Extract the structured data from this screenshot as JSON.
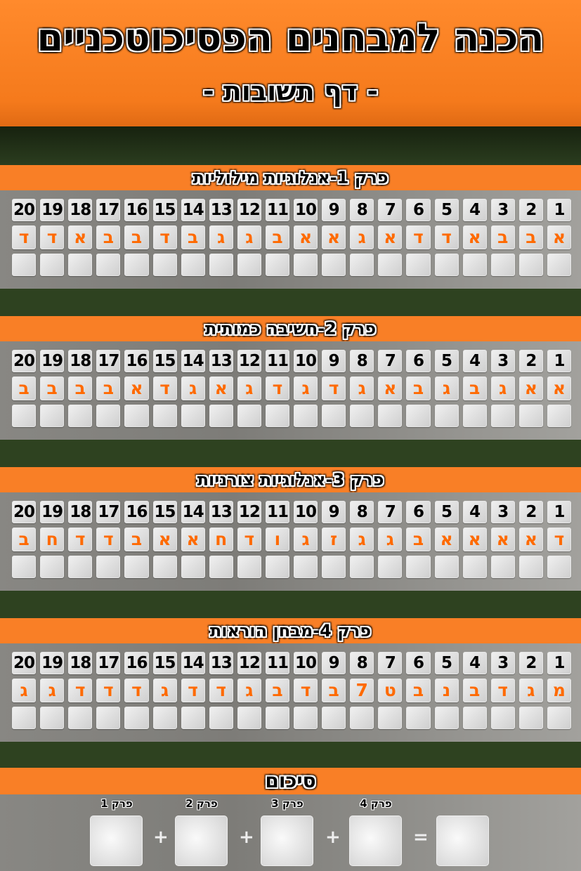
{
  "header": {
    "title": "הכנה למבחנים הפסיכוטכניים",
    "subtitle": "- דף תשובות -"
  },
  "colors": {
    "accent": "#f97f26",
    "answer": "#ff6a00",
    "background": "#2e4220",
    "panel": "#888783"
  },
  "sections": [
    {
      "title": "פרק 1-אנלוגיות מילוליות",
      "numbers": [
        "1",
        "2",
        "3",
        "4",
        "5",
        "6",
        "7",
        "8",
        "9",
        "10",
        "11",
        "12",
        "13",
        "14",
        "15",
        "16",
        "17",
        "18",
        "19",
        "20"
      ],
      "answers": [
        "א",
        "ב",
        "ב",
        "א",
        "ד",
        "ד",
        "א",
        "ג",
        "א",
        "א",
        "ב",
        "ג",
        "ג",
        "ב",
        "ד",
        "ב",
        "ב",
        "א",
        "ד",
        "ד"
      ]
    },
    {
      "title": "פרק 2-חשיבה כמותית",
      "numbers": [
        "1",
        "2",
        "3",
        "4",
        "5",
        "6",
        "7",
        "8",
        "9",
        "10",
        "11",
        "12",
        "13",
        "14",
        "15",
        "16",
        "17",
        "18",
        "19",
        "20"
      ],
      "answers": [
        "א",
        "א",
        "ג",
        "ב",
        "ג",
        "ב",
        "א",
        "ג",
        "ד",
        "ג",
        "ד",
        "ג",
        "א",
        "ג",
        "ד",
        "א",
        "ב",
        "ב",
        "ב",
        "ב"
      ]
    },
    {
      "title": "פרק 3-אנלוגיות צורניות",
      "numbers": [
        "1",
        "2",
        "3",
        "4",
        "5",
        "6",
        "7",
        "8",
        "9",
        "10",
        "11",
        "12",
        "13",
        "14",
        "15",
        "16",
        "17",
        "18",
        "19",
        "20"
      ],
      "answers": [
        "ד",
        "א",
        "א",
        "א",
        "א",
        "ב",
        "ג",
        "ג",
        "ז",
        "ג",
        "ו",
        "ד",
        "ח",
        "א",
        "א",
        "ב",
        "ד",
        "ד",
        "ח",
        "ב"
      ]
    },
    {
      "title": "פרק 4-מבחן הוראות",
      "numbers": [
        "1",
        "2",
        "3",
        "4",
        "5",
        "6",
        "7",
        "8",
        "9",
        "10",
        "11",
        "12",
        "13",
        "14",
        "15",
        "16",
        "17",
        "18",
        "19",
        "20"
      ],
      "answers": [
        "מ",
        "ג",
        "ד",
        "ב",
        "נ",
        "ב",
        "ט",
        "7",
        "ב",
        "ד",
        "ב",
        "ג",
        "ד",
        "ד",
        "ג",
        "ד",
        "ד",
        "ד",
        "ג",
        "ג"
      ]
    }
  ],
  "summary": {
    "title": "סיכום",
    "labels": [
      "פרק 1",
      "פרק 2",
      "פרק 3",
      "פרק 4"
    ],
    "plus": "+",
    "equals": "="
  }
}
